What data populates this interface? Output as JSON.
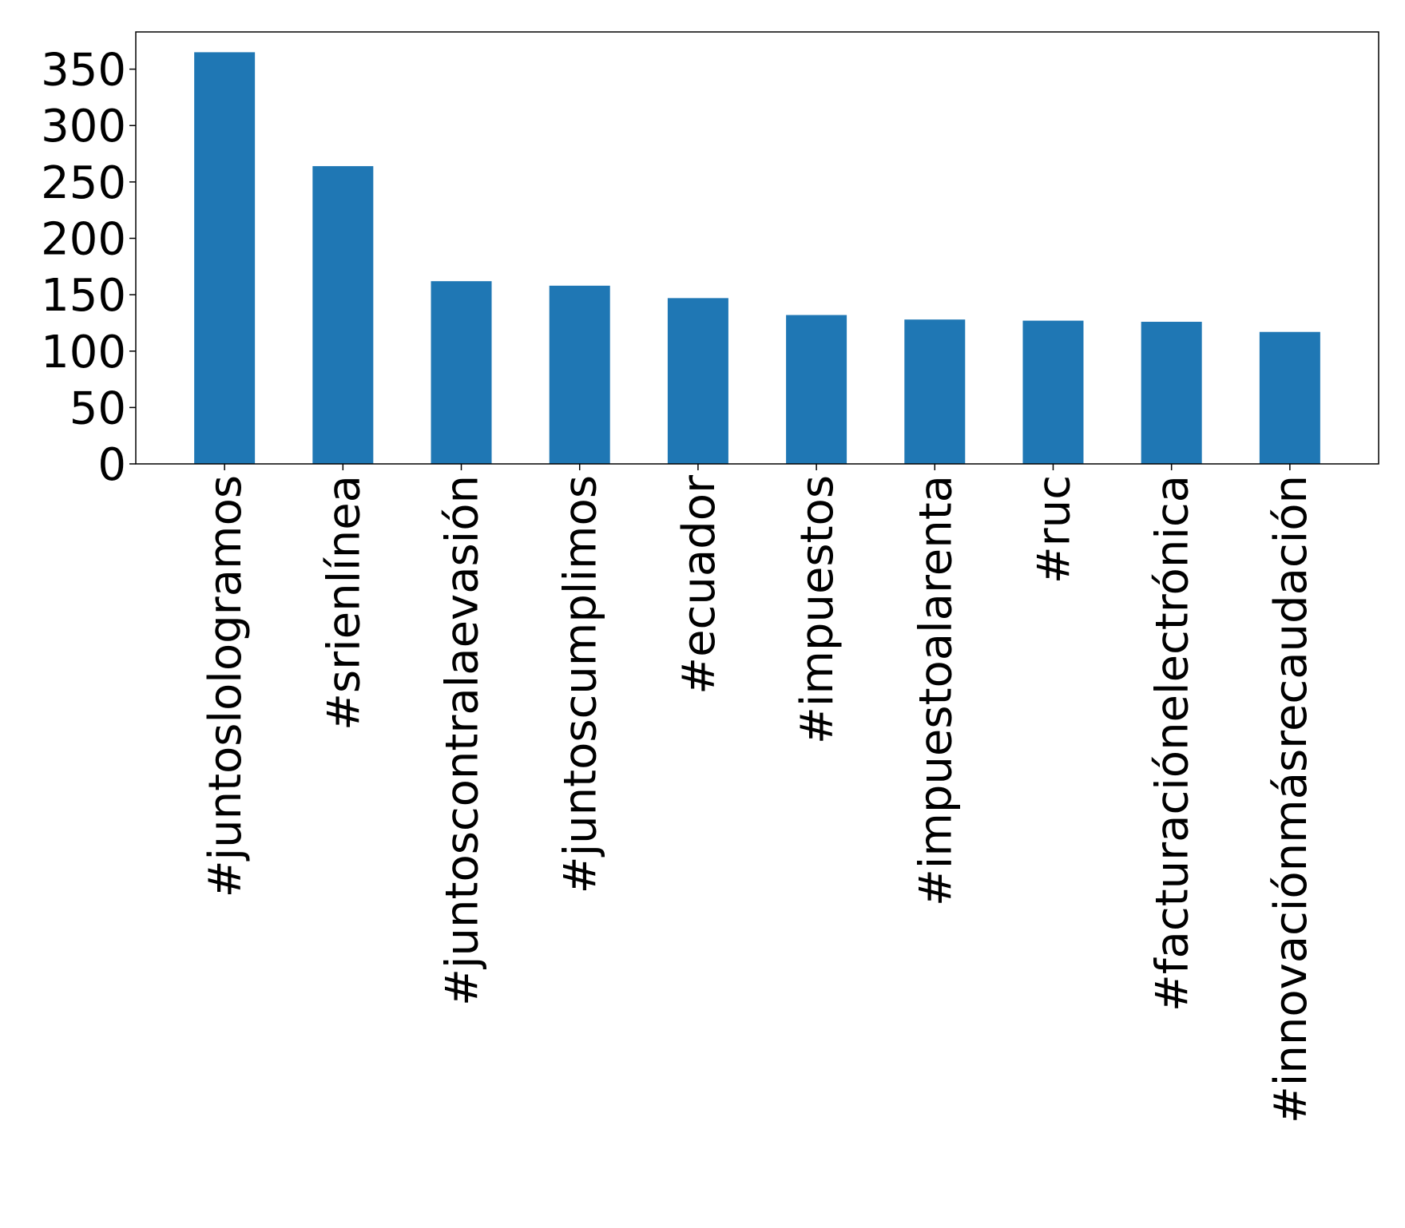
{
  "chart_data": {
    "type": "bar",
    "title": "",
    "xlabel": "",
    "ylabel": "",
    "categories": [
      "#juntoslologramos",
      "#srienlínea",
      "#juntoscontralaevasión",
      "#juntoscumplimos",
      "#ecuador",
      "#impuestos",
      "#impuestoalarenta",
      "#ruc",
      "#facturaciónelectrónica",
      "#innovaciónmásrecaudación"
    ],
    "values": [
      365,
      264,
      162,
      158,
      147,
      132,
      128,
      127,
      126,
      117
    ],
    "ylim": [
      0,
      383
    ],
    "yticks": [
      0,
      50,
      100,
      150,
      200,
      250,
      300,
      350
    ],
    "ytick_labels": [
      "0",
      "50",
      "100",
      "150",
      "200",
      "250",
      "300",
      "350"
    ],
    "bar_color": "#1f77b4",
    "grid": false,
    "legend": "none"
  }
}
